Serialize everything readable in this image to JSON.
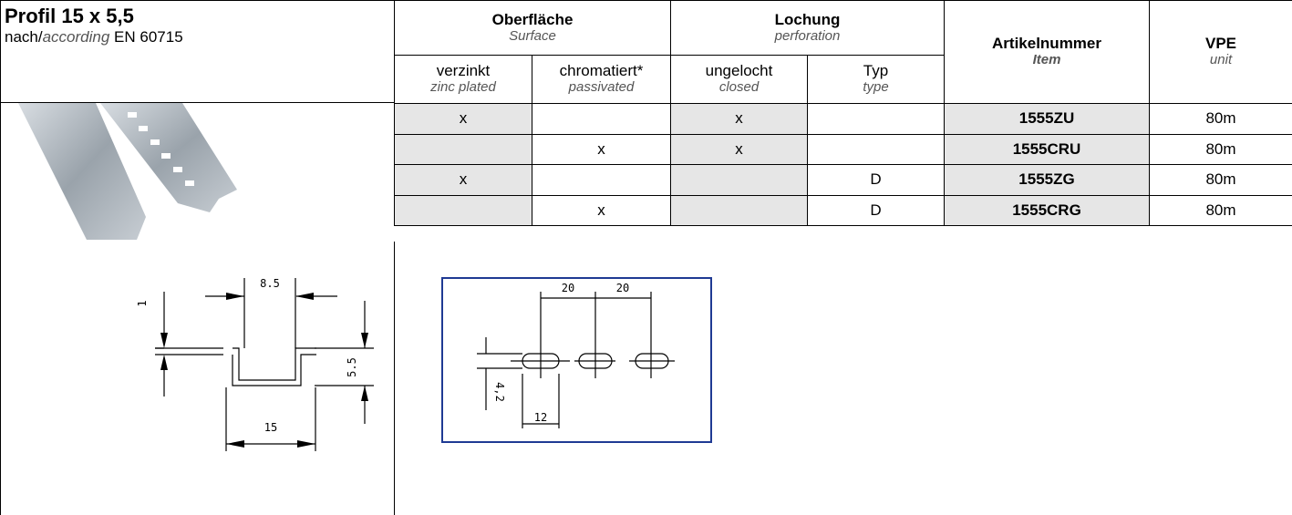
{
  "header": {
    "title": "Profil 15 x 5,5",
    "standard_prefix": "nach/",
    "standard_en": "according",
    "standard_suffix": "EN 60715"
  },
  "table": {
    "groups": [
      {
        "label": "Oberfläche",
        "translation": "Surface"
      },
      {
        "label": "Lochung",
        "translation": "perforation"
      }
    ],
    "columns": [
      {
        "label": "verzinkt",
        "translation": "zinc plated"
      },
      {
        "label": "chromatiert*",
        "translation": "passivated"
      },
      {
        "label": "ungelocht",
        "translation": "closed"
      },
      {
        "label": "Typ",
        "translation": "type"
      }
    ],
    "item": {
      "label": "Artikelnummer",
      "translation": "Item"
    },
    "unit": {
      "label": "VPE",
      "translation": "unit"
    },
    "rows": [
      [
        "x",
        null,
        "x",
        null,
        "1555ZU",
        "80m"
      ],
      [
        null,
        "x",
        "x",
        null,
        "1555CRU",
        "80m"
      ],
      [
        "x",
        null,
        null,
        "D",
        "1555ZG",
        "80m"
      ],
      [
        null,
        "x",
        null,
        "D",
        "1555CRG",
        "80m"
      ]
    ]
  },
  "drawings": {
    "profile": {
      "top_width": "8.5",
      "thickness": "1",
      "height": "5.5",
      "width": "15"
    },
    "perforation": {
      "pitch_1": "20",
      "pitch_2": "20",
      "slot_height": "4,2",
      "slot_length": "12"
    }
  }
}
